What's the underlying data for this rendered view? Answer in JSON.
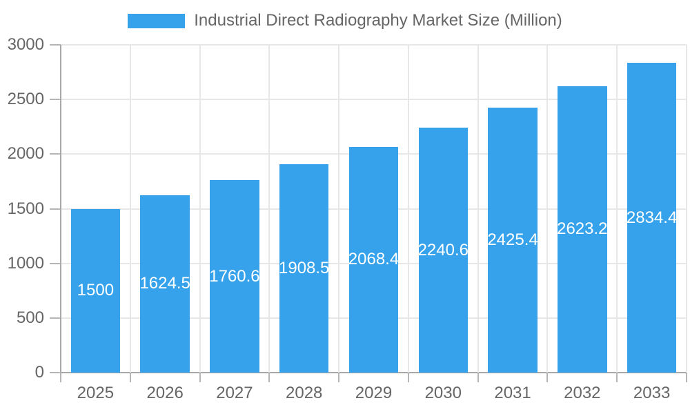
{
  "chart_data": {
    "type": "bar",
    "title": "Industrial Direct Radiography Market Size (Million)",
    "legend": [
      "Industrial Direct Radiography Market Size (Million)"
    ],
    "legend_position": "top",
    "categories": [
      "2025",
      "2026",
      "2027",
      "2028",
      "2029",
      "2030",
      "2031",
      "2032",
      "2033"
    ],
    "values": [
      1500,
      1624.5,
      1760.6,
      1908.5,
      2068.4,
      2240.6,
      2425.4,
      2623.2,
      2834.4
    ],
    "value_labels": [
      "1500",
      "1624.5",
      "1760.6",
      "1908.5",
      "2068.4",
      "2240.6",
      "2425.4",
      "2623.2",
      "2834.4"
    ],
    "xlabel": "",
    "ylabel": "",
    "ylim": [
      0,
      3000
    ],
    "y_ticks": [
      0,
      500,
      1000,
      1500,
      2000,
      2500,
      3000
    ],
    "grid": true,
    "colors": {
      "bar": "#36A2EB",
      "axis_text": "#666666",
      "grid_line": "#e7e7e7",
      "axis_line": "#a8a8a8",
      "tick_mark": "#b5b5b5",
      "data_label": "#ffffff",
      "background": "#ffffff"
    }
  }
}
